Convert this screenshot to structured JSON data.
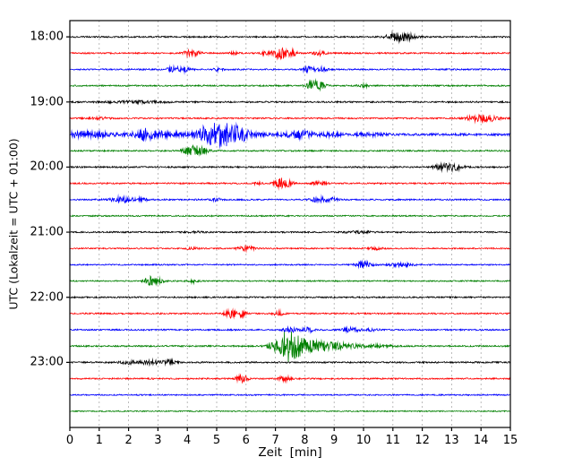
{
  "chart_data": {
    "type": "line",
    "variant": "seismogram-dayplot",
    "title": "",
    "xlabel": "Zeit  [min]",
    "ylabel": "UTC (Lokalzeit = UTC + 01:00)",
    "xlim": [
      0,
      15
    ],
    "x_ticks": [
      "0",
      "1",
      "2",
      "3",
      "4",
      "5",
      "6",
      "7",
      "8",
      "9",
      "10",
      "11",
      "12",
      "13",
      "14",
      "15"
    ],
    "y_ticks": [
      "18:00",
      "19:00",
      "20:00",
      "21:00",
      "22:00",
      "23:00"
    ],
    "rows_per_hour": 4,
    "interval_minutes": 15,
    "grid": {
      "show": true,
      "color": "#ababab",
      "dash": [
        2,
        3
      ]
    },
    "colors": {
      "black": "#000000",
      "red": "#ff0000",
      "blue": "#0000ff",
      "green": "#008000"
    },
    "traces": [
      {
        "time": "18:00",
        "color": "black",
        "noise": 0.8,
        "events": [
          {
            "t": 11.35,
            "a": 4.5,
            "w": 0.28
          },
          {
            "t": 10.95,
            "a": 1.8,
            "w": 0.15
          }
        ]
      },
      {
        "time": "18:15",
        "color": "red",
        "noise": 0.8,
        "events": [
          {
            "t": 4.05,
            "a": 2.8,
            "w": 0.15
          },
          {
            "t": 4.35,
            "a": 1.8,
            "w": 0.1
          },
          {
            "t": 5.6,
            "a": 1.4,
            "w": 0.1
          },
          {
            "t": 6.6,
            "a": 1.4,
            "w": 0.1
          },
          {
            "t": 7.15,
            "a": 6.5,
            "w": 0.18
          },
          {
            "t": 7.55,
            "a": 3.5,
            "w": 0.12
          },
          {
            "t": 8.5,
            "a": 2.4,
            "w": 0.15
          }
        ]
      },
      {
        "time": "18:30",
        "color": "blue",
        "noise": 0.8,
        "events": [
          {
            "t": 3.6,
            "a": 2.8,
            "w": 0.2
          },
          {
            "t": 4.0,
            "a": 1.8,
            "w": 0.12
          },
          {
            "t": 5.05,
            "a": 1.8,
            "w": 0.1
          },
          {
            "t": 8.15,
            "a": 3.2,
            "w": 0.15
          },
          {
            "t": 8.6,
            "a": 2.4,
            "w": 0.12
          }
        ]
      },
      {
        "time": "18:45",
        "color": "green",
        "noise": 0.8,
        "events": [
          {
            "t": 8.3,
            "a": 6.0,
            "w": 0.15
          },
          {
            "t": 8.6,
            "a": 2.5,
            "w": 0.1
          },
          {
            "t": 10.0,
            "a": 1.8,
            "w": 0.12
          }
        ]
      },
      {
        "time": "19:00",
        "color": "black",
        "noise": 0.85,
        "events": [
          {
            "t": 2.2,
            "a": 1.0,
            "w": 0.8
          }
        ]
      },
      {
        "time": "19:15",
        "color": "red",
        "noise": 0.8,
        "events": [
          {
            "t": 13.9,
            "a": 3.2,
            "w": 0.3
          },
          {
            "t": 14.35,
            "a": 2.2,
            "w": 0.2
          },
          {
            "t": 1.0,
            "a": 1.0,
            "w": 0.3
          }
        ]
      },
      {
        "time": "19:30",
        "color": "blue",
        "noise": 1.3,
        "events": [
          {
            "t": 4.0,
            "a": 1.2,
            "w": 2.5
          },
          {
            "t": 0.5,
            "a": 2.6,
            "w": 0.5
          },
          {
            "t": 2.55,
            "a": 5.5,
            "w": 0.25
          },
          {
            "t": 3.3,
            "a": 2.0,
            "w": 0.2
          },
          {
            "t": 4.6,
            "a": 4.5,
            "w": 0.2
          },
          {
            "t": 5.0,
            "a": 8.5,
            "w": 0.3
          },
          {
            "t": 5.45,
            "a": 7.5,
            "w": 0.28
          },
          {
            "t": 5.9,
            "a": 4.0,
            "w": 0.25
          },
          {
            "t": 7.8,
            "a": 3.8,
            "w": 0.3
          },
          {
            "t": 8.9,
            "a": 2.0,
            "w": 0.2
          },
          {
            "t": 10.2,
            "a": 1.4,
            "w": 0.3
          }
        ]
      },
      {
        "time": "19:45",
        "color": "green",
        "noise": 0.8,
        "events": [
          {
            "t": 3.9,
            "a": 2.0,
            "w": 0.1
          },
          {
            "t": 4.2,
            "a": 6.2,
            "w": 0.15
          },
          {
            "t": 4.55,
            "a": 3.2,
            "w": 0.14
          }
        ]
      },
      {
        "time": "20:00",
        "color": "black",
        "noise": 0.85,
        "events": [
          {
            "t": 12.55,
            "a": 1.6,
            "w": 0.15
          },
          {
            "t": 13.0,
            "a": 4.0,
            "w": 0.25
          }
        ]
      },
      {
        "time": "20:15",
        "color": "red",
        "noise": 0.8,
        "events": [
          {
            "t": 6.4,
            "a": 1.5,
            "w": 0.1
          },
          {
            "t": 7.2,
            "a": 5.8,
            "w": 0.15
          },
          {
            "t": 7.5,
            "a": 2.4,
            "w": 0.1
          },
          {
            "t": 8.5,
            "a": 2.4,
            "w": 0.15
          }
        ]
      },
      {
        "time": "20:30",
        "color": "blue",
        "noise": 0.8,
        "events": [
          {
            "t": 1.8,
            "a": 2.8,
            "w": 0.3
          },
          {
            "t": 2.45,
            "a": 1.8,
            "w": 0.15
          },
          {
            "t": 5.0,
            "a": 1.4,
            "w": 0.12
          },
          {
            "t": 8.5,
            "a": 2.8,
            "w": 0.2
          },
          {
            "t": 8.95,
            "a": 1.8,
            "w": 0.12
          }
        ]
      },
      {
        "time": "20:45",
        "color": "green",
        "noise": 0.7,
        "events": []
      },
      {
        "time": "21:00",
        "color": "black",
        "noise": 0.8,
        "events": [
          {
            "t": 4.3,
            "a": 0.9,
            "w": 0.2
          },
          {
            "t": 9.9,
            "a": 1.2,
            "w": 0.3
          }
        ]
      },
      {
        "time": "21:15",
        "color": "red",
        "noise": 0.7,
        "events": [
          {
            "t": 4.2,
            "a": 1.2,
            "w": 0.15
          },
          {
            "t": 6.0,
            "a": 2.4,
            "w": 0.2
          },
          {
            "t": 10.4,
            "a": 1.1,
            "w": 0.2
          }
        ]
      },
      {
        "time": "21:30",
        "color": "blue",
        "noise": 0.7,
        "events": [
          {
            "t": 10.0,
            "a": 3.2,
            "w": 0.2
          },
          {
            "t": 11.3,
            "a": 1.9,
            "w": 0.3
          }
        ]
      },
      {
        "time": "21:45",
        "color": "green",
        "noise": 0.7,
        "events": [
          {
            "t": 2.75,
            "a": 4.8,
            "w": 0.15
          },
          {
            "t": 3.1,
            "a": 2.2,
            "w": 0.1
          },
          {
            "t": 4.2,
            "a": 1.9,
            "w": 0.12
          }
        ]
      },
      {
        "time": "22:00",
        "color": "black",
        "noise": 0.8,
        "events": []
      },
      {
        "time": "22:15",
        "color": "red",
        "noise": 0.8,
        "events": [
          {
            "t": 5.5,
            "a": 4.8,
            "w": 0.15
          },
          {
            "t": 5.85,
            "a": 3.2,
            "w": 0.12
          },
          {
            "t": 7.1,
            "a": 2.3,
            "w": 0.12
          }
        ]
      },
      {
        "time": "22:30",
        "color": "blue",
        "noise": 0.8,
        "events": [
          {
            "t": 7.5,
            "a": 2.8,
            "w": 0.15
          },
          {
            "t": 8.1,
            "a": 2.8,
            "w": 0.15
          },
          {
            "t": 9.6,
            "a": 2.3,
            "w": 0.2
          },
          {
            "t": 10.3,
            "a": 1.4,
            "w": 0.15
          }
        ]
      },
      {
        "time": "22:45",
        "color": "green",
        "noise": 0.8,
        "events": [
          {
            "t": 6.9,
            "a": 3.5,
            "w": 0.15
          },
          {
            "t": 7.35,
            "a": 13.5,
            "w": 0.2
          },
          {
            "t": 7.7,
            "a": 9.0,
            "w": 0.25
          },
          {
            "t": 8.3,
            "a": 5.5,
            "w": 0.4
          },
          {
            "t": 9.2,
            "a": 2.8,
            "w": 0.5
          },
          {
            "t": 10.5,
            "a": 1.3,
            "w": 0.4
          }
        ]
      },
      {
        "time": "23:00",
        "color": "black",
        "noise": 0.85,
        "events": [
          {
            "t": 2.0,
            "a": 1.9,
            "w": 0.2
          },
          {
            "t": 2.8,
            "a": 2.3,
            "w": 0.3
          },
          {
            "t": 3.4,
            "a": 1.9,
            "w": 0.15
          }
        ]
      },
      {
        "time": "23:15",
        "color": "red",
        "noise": 0.8,
        "events": [
          {
            "t": 5.85,
            "a": 4.3,
            "w": 0.15
          },
          {
            "t": 7.3,
            "a": 2.8,
            "w": 0.15
          }
        ]
      },
      {
        "time": "23:30",
        "color": "blue",
        "noise": 0.7,
        "events": []
      },
      {
        "time": "23:45",
        "color": "green",
        "noise": 0.6,
        "events": []
      }
    ]
  }
}
